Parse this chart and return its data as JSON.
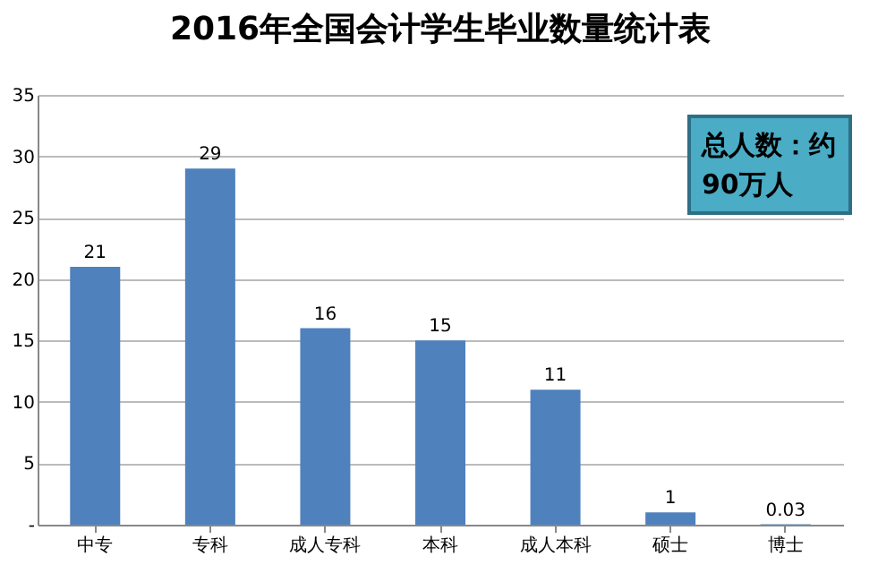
{
  "chart_data": {
    "type": "bar",
    "title": "2016年全国会计学生毕业数量统计表",
    "categories": [
      "中专",
      "专科",
      "成人专科",
      "本科",
      "成人本科",
      "硕士",
      "博士"
    ],
    "values": [
      21,
      29,
      16,
      15,
      11,
      1,
      0.03
    ],
    "color": "#4f81bd",
    "ylim": [
      0,
      35
    ],
    "yticks": [
      {
        "value": 0,
        "label": "-"
      },
      5,
      10,
      15,
      20,
      25,
      30,
      35
    ],
    "grid": "y",
    "data_labels": true,
    "annotations": [
      "总人数：约90万人"
    ]
  }
}
